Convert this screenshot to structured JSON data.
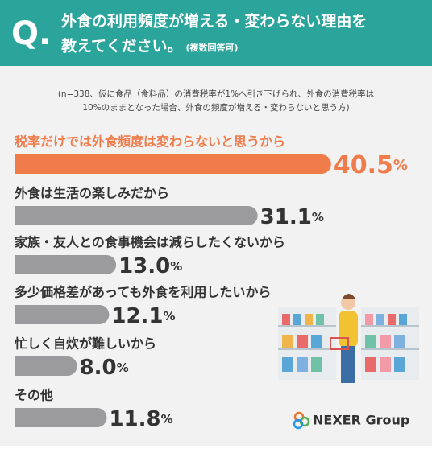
{
  "chart_data": {
    "type": "bar",
    "question_mark": "Q.",
    "title_lines": [
      "外食の利用頻度が増える・変わらない理由を",
      "教えてください。"
    ],
    "subtitle": "(複数回答可)",
    "note_lines": [
      "(n=338、仮に食品（食料品）の消費税率が1%へ引き下げられ、外食の消費税率は",
      "10%のままとなった場合、外食の頻度が増える・変わらないと思う方)"
    ],
    "categories": [
      "税率だけでは外食頻度は変わらないと思うから",
      "外食は生活の楽しみだから",
      "家族・友人との食事機会は減らしたくないから",
      "多少価格差があっても外食を利用したいから",
      "忙しく自炊が難しいから",
      "その他"
    ],
    "values": [
      40.5,
      31.1,
      13.0,
      12.1,
      8.0,
      11.8
    ],
    "value_labels": [
      "40.5%",
      "31.1%",
      "13.0%",
      "12.1%",
      "8.0%",
      "11.8%"
    ],
    "colors": [
      "#f07c4c",
      "#9b9b9e",
      "#9b9b9e",
      "#9b9b9e",
      "#9b9b9e",
      "#9b9b9e"
    ],
    "logo": "NEXER Group"
  }
}
